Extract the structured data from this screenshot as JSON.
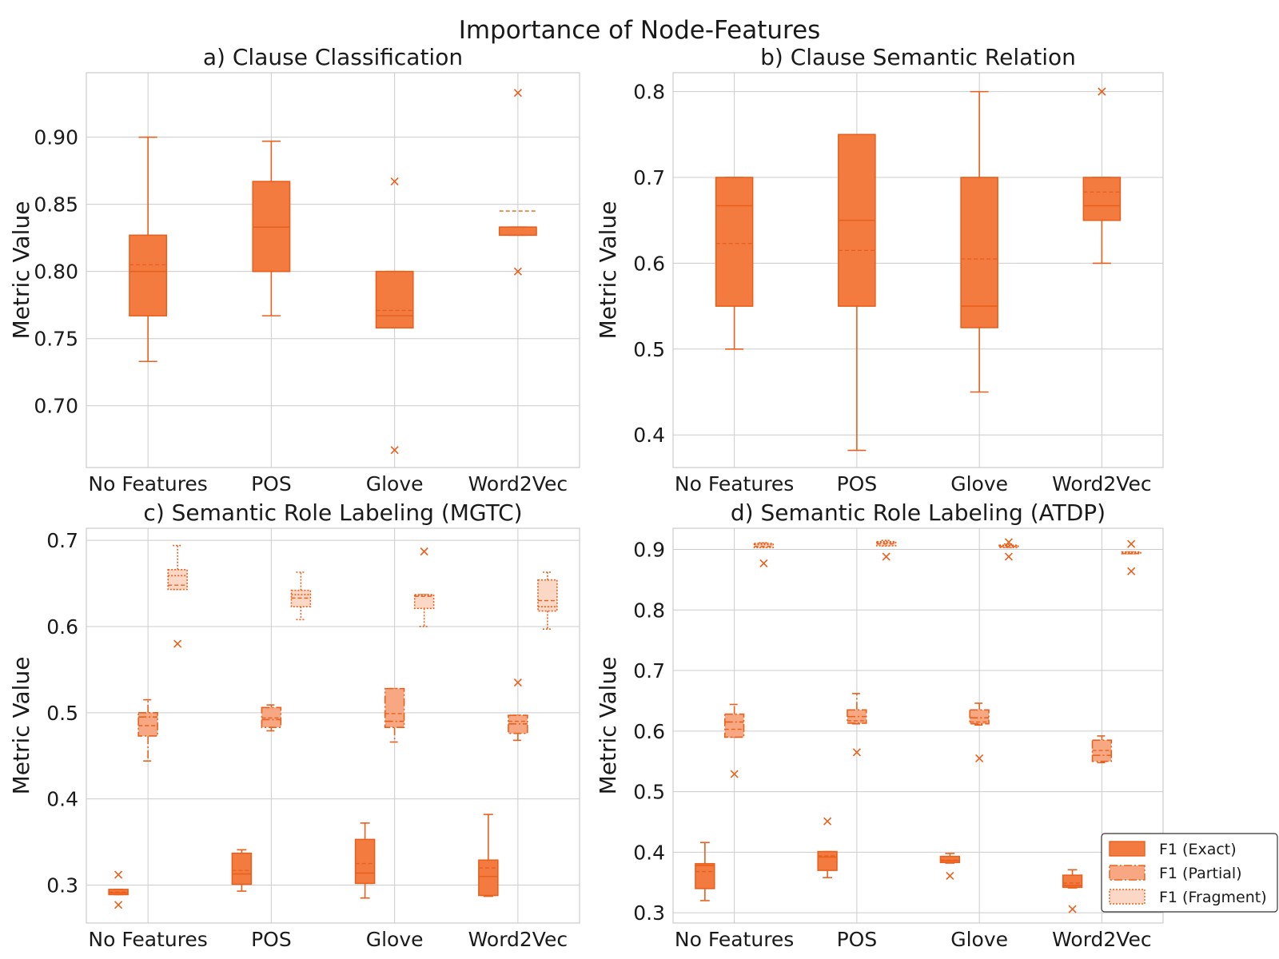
{
  "figure_title": "Importance of Node-Features",
  "colors": {
    "exact_fill": "#f47b3f",
    "partial_fill": "#f7a882",
    "fragment_fill": "#fbd8c6",
    "line": "#e8601c"
  },
  "chart_data": [
    {
      "type": "box",
      "title": "a) Clause Classification",
      "ylabel": "Metric Value",
      "categories": [
        "No Features",
        "POS",
        "Glove",
        "Word2Vec"
      ],
      "ylim": [
        0.654,
        0.948
      ],
      "yticks": [
        0.7,
        0.75,
        0.8,
        0.85,
        0.9
      ],
      "ytick_labels": [
        "0.70",
        "0.75",
        "0.80",
        "0.85",
        "0.90"
      ],
      "series": [
        {
          "style": "exact",
          "boxes": [
            {
              "whislo": 0.733,
              "q1": 0.767,
              "med": 0.8,
              "mean": 0.805,
              "q3": 0.827,
              "whishi": 0.9,
              "fliers": []
            },
            {
              "whislo": 0.767,
              "q1": 0.8,
              "med": 0.833,
              "mean": 0.833,
              "q3": 0.867,
              "whishi": 0.897,
              "fliers": []
            },
            {
              "whislo": 0.758,
              "q1": 0.758,
              "med": 0.767,
              "mean": 0.771,
              "q3": 0.8,
              "whishi": 0.8,
              "fliers": [
                0.867,
                0.667
              ]
            },
            {
              "whislo": 0.827,
              "q1": 0.827,
              "med": 0.833,
              "mean": 0.845,
              "q3": 0.833,
              "whishi": 0.833,
              "fliers": [
                0.933,
                0.8
              ]
            }
          ]
        }
      ]
    },
    {
      "type": "box",
      "title": "b) Clause Semantic Relation",
      "ylabel": "Metric Value",
      "categories": [
        "No Features",
        "POS",
        "Glove",
        "Word2Vec"
      ],
      "ylim": [
        0.362,
        0.822
      ],
      "yticks": [
        0.4,
        0.5,
        0.6,
        0.7,
        0.8
      ],
      "ytick_labels": [
        "0.4",
        "0.5",
        "0.6",
        "0.7",
        "0.8"
      ],
      "series": [
        {
          "style": "exact",
          "boxes": [
            {
              "whislo": 0.5,
              "q1": 0.55,
              "med": 0.667,
              "mean": 0.623,
              "q3": 0.7,
              "whishi": 0.7,
              "fliers": []
            },
            {
              "whislo": 0.382,
              "q1": 0.55,
              "med": 0.65,
              "mean": 0.615,
              "q3": 0.75,
              "whishi": 0.75,
              "fliers": []
            },
            {
              "whislo": 0.45,
              "q1": 0.525,
              "med": 0.55,
              "mean": 0.605,
              "q3": 0.7,
              "whishi": 0.8,
              "fliers": []
            },
            {
              "whislo": 0.6,
              "q1": 0.65,
              "med": 0.667,
              "mean": 0.683,
              "q3": 0.7,
              "whishi": 0.7,
              "fliers": [
                0.8
              ]
            }
          ]
        }
      ]
    },
    {
      "type": "box",
      "title": "c) Semantic Role Labeling (MGTC)",
      "ylabel": "Metric Value",
      "categories": [
        "No Features",
        "POS",
        "Glove",
        "Word2Vec"
      ],
      "ylim": [
        0.256,
        0.714
      ],
      "yticks": [
        0.3,
        0.4,
        0.5,
        0.6,
        0.7
      ],
      "ytick_labels": [
        "0.3",
        "0.4",
        "0.5",
        "0.6",
        "0.7"
      ],
      "series": [
        {
          "name": "F1 (Exact)",
          "style": "exact",
          "boxes": [
            {
              "whislo": 0.289,
              "q1": 0.289,
              "med": 0.291,
              "mean": 0.292,
              "q3": 0.295,
              "whishi": 0.295,
              "fliers": [
                0.312,
                0.277
              ]
            },
            {
              "whislo": 0.293,
              "q1": 0.301,
              "med": 0.313,
              "mean": 0.317,
              "q3": 0.337,
              "whishi": 0.341,
              "fliers": []
            },
            {
              "whislo": 0.285,
              "q1": 0.302,
              "med": 0.314,
              "mean": 0.325,
              "q3": 0.353,
              "whishi": 0.372,
              "fliers": []
            },
            {
              "whislo": 0.287,
              "q1": 0.288,
              "med": 0.31,
              "mean": 0.32,
              "q3": 0.329,
              "whishi": 0.382,
              "fliers": []
            }
          ]
        },
        {
          "name": "F1 (Partial)",
          "style": "partial",
          "boxes": [
            {
              "whislo": 0.444,
              "q1": 0.473,
              "med": 0.495,
              "mean": 0.485,
              "q3": 0.5,
              "whishi": 0.515,
              "fliers": []
            },
            {
              "whislo": 0.479,
              "q1": 0.483,
              "med": 0.492,
              "mean": 0.494,
              "q3": 0.506,
              "whishi": 0.509,
              "fliers": []
            },
            {
              "whislo": 0.466,
              "q1": 0.483,
              "med": 0.49,
              "mean": 0.499,
              "q3": 0.528,
              "whishi": 0.528,
              "fliers": []
            },
            {
              "whislo": 0.468,
              "q1": 0.476,
              "med": 0.487,
              "mean": 0.49,
              "q3": 0.497,
              "whishi": 0.497,
              "fliers": [
                0.535
              ]
            }
          ]
        },
        {
          "name": "F1 (Fragment)",
          "style": "fragment",
          "boxes": [
            {
              "whislo": 0.643,
              "q1": 0.643,
              "med": 0.659,
              "mean": 0.648,
              "q3": 0.666,
              "whishi": 0.694,
              "fliers": [
                0.58
              ]
            },
            {
              "whislo": 0.608,
              "q1": 0.623,
              "med": 0.637,
              "mean": 0.633,
              "q3": 0.642,
              "whishi": 0.663,
              "fliers": []
            },
            {
              "whislo": 0.6,
              "q1": 0.621,
              "med": 0.636,
              "mean": 0.635,
              "q3": 0.637,
              "whishi": 0.637,
              "fliers": [
                0.687
              ]
            },
            {
              "whislo": 0.597,
              "q1": 0.618,
              "med": 0.623,
              "mean": 0.63,
              "q3": 0.654,
              "whishi": 0.663,
              "fliers": []
            }
          ]
        }
      ]
    },
    {
      "type": "box",
      "title": "d) Semantic Role Labeling (ATDP)",
      "ylabel": "Metric Value",
      "categories": [
        "No Features",
        "POS",
        "Glove",
        "Word2Vec"
      ],
      "ylim": [
        0.283,
        0.935
      ],
      "yticks": [
        0.3,
        0.4,
        0.5,
        0.6,
        0.7,
        0.8,
        0.9
      ],
      "ytick_labels": [
        "0.3",
        "0.4",
        "0.5",
        "0.6",
        "0.7",
        "0.8",
        "0.9"
      ],
      "legend_placement": "lower-right",
      "series": [
        {
          "name": "F1 (Exact)",
          "style": "exact",
          "boxes": [
            {
              "whislo": 0.32,
              "q1": 0.34,
              "med": 0.378,
              "mean": 0.368,
              "q3": 0.381,
              "whishi": 0.416,
              "fliers": []
            },
            {
              "whislo": 0.358,
              "q1": 0.37,
              "med": 0.392,
              "mean": 0.394,
              "q3": 0.401,
              "whishi": 0.401,
              "fliers": [
                0.451
              ]
            },
            {
              "whislo": 0.382,
              "q1": 0.383,
              "med": 0.386,
              "mean": 0.387,
              "q3": 0.393,
              "whishi": 0.398,
              "fliers": [
                0.361
              ]
            },
            {
              "whislo": 0.341,
              "q1": 0.342,
              "med": 0.345,
              "mean": 0.349,
              "q3": 0.362,
              "whishi": 0.371,
              "fliers": [
                0.306
              ]
            }
          ]
        },
        {
          "name": "F1 (Partial)",
          "style": "partial",
          "boxes": [
            {
              "whislo": 0.59,
              "q1": 0.59,
              "med": 0.615,
              "mean": 0.603,
              "q3": 0.628,
              "whishi": 0.644,
              "fliers": [
                0.529
              ]
            },
            {
              "whislo": 0.612,
              "q1": 0.613,
              "med": 0.624,
              "mean": 0.617,
              "q3": 0.635,
              "whishi": 0.662,
              "fliers": [
                0.565
              ]
            },
            {
              "whislo": 0.61,
              "q1": 0.612,
              "med": 0.622,
              "mean": 0.615,
              "q3": 0.635,
              "whishi": 0.646,
              "fliers": [
                0.555
              ]
            },
            {
              "whislo": 0.548,
              "q1": 0.55,
              "med": 0.56,
              "mean": 0.568,
              "q3": 0.585,
              "whishi": 0.592,
              "fliers": []
            }
          ]
        },
        {
          "name": "F1 (Fragment)",
          "style": "fragment",
          "boxes": [
            {
              "whislo": 0.903,
              "q1": 0.903,
              "med": 0.908,
              "mean": 0.905,
              "q3": 0.91,
              "whishi": 0.911,
              "fliers": [
                0.877
              ]
            },
            {
              "whislo": 0.906,
              "q1": 0.906,
              "med": 0.911,
              "mean": 0.909,
              "q3": 0.913,
              "whishi": 0.915,
              "fliers": [
                0.888
              ]
            },
            {
              "whislo": 0.903,
              "q1": 0.903,
              "med": 0.906,
              "mean": 0.905,
              "q3": 0.907,
              "whishi": 0.909,
              "fliers": [
                0.912,
                0.888
              ]
            },
            {
              "whislo": 0.893,
              "q1": 0.893,
              "med": 0.895,
              "mean": 0.893,
              "q3": 0.896,
              "whishi": 0.896,
              "fliers": [
                0.909,
                0.864
              ]
            }
          ]
        }
      ]
    }
  ]
}
